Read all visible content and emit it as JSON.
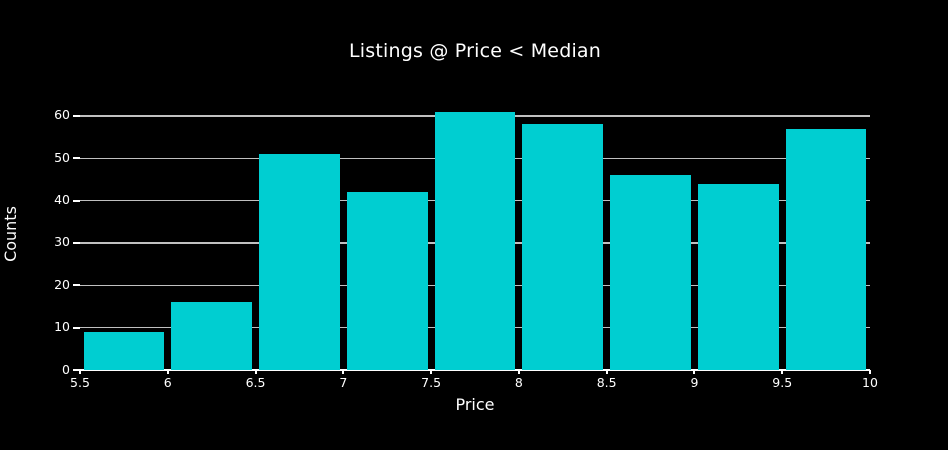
{
  "chart_data": {
    "type": "bar",
    "subtype": "histogram",
    "title": "Listings @ Price < Median",
    "xlabel": "Price",
    "ylabel": "Counts",
    "bin_edges": [
      5.5,
      6,
      6.5,
      7,
      7.5,
      8,
      8.5,
      9,
      9.5,
      10
    ],
    "values": [
      9,
      16,
      51,
      42,
      61,
      58,
      46,
      44,
      57
    ],
    "x_tick_labels": [
      "5.5",
      "6",
      "6.5",
      "7",
      "7.5",
      "8",
      "8.5",
      "9",
      "9.5",
      "10"
    ],
    "y_ticks": [
      0,
      10,
      20,
      30,
      40,
      50,
      60
    ],
    "xlim": [
      5.5,
      10
    ],
    "ylim": [
      0,
      64
    ],
    "grid": "horizontal",
    "legend": "none",
    "colors": {
      "background": "#000000",
      "bar": "#00CED1",
      "grid": "#c0c0c0",
      "text": "#ffffff",
      "axis": "#ffffff"
    }
  }
}
